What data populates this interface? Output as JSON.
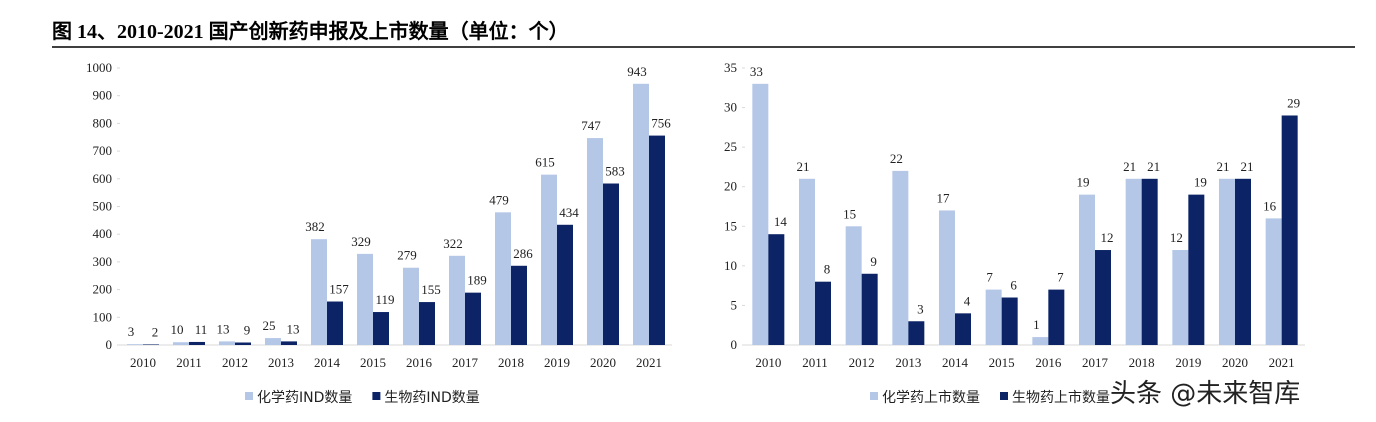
{
  "title": "图 14、2010-2021 国产创新药申报及上市数量（单位：个）",
  "watermark": "头条 @未来智库",
  "chart_data": [
    {
      "type": "bar",
      "categories": [
        "2010",
        "2011",
        "2012",
        "2013",
        "2014",
        "2015",
        "2016",
        "2017",
        "2018",
        "2019",
        "2020",
        "2021"
      ],
      "series": [
        {
          "name": "化学药IND数量",
          "color": "#b4c7e7",
          "values": [
            3,
            10,
            13,
            25,
            382,
            329,
            279,
            322,
            479,
            615,
            747,
            943
          ]
        },
        {
          "name": "生物药IND数量",
          "color": "#0c2466",
          "values": [
            2,
            11,
            9,
            13,
            157,
            119,
            155,
            189,
            286,
            434,
            583,
            756
          ]
        }
      ],
      "ylim": [
        0,
        1000
      ],
      "yticks": [
        0,
        100,
        200,
        300,
        400,
        500,
        600,
        700,
        800,
        900,
        1000
      ],
      "grid": false,
      "legend": "bottom"
    },
    {
      "type": "bar",
      "categories": [
        "2010",
        "2011",
        "2012",
        "2013",
        "2014",
        "2015",
        "2016",
        "2017",
        "2018",
        "2019",
        "2020",
        "2021"
      ],
      "series": [
        {
          "name": "化学药上市数量",
          "color": "#b4c7e7",
          "values": [
            33,
            21,
            15,
            22,
            17,
            7,
            1,
            19,
            21,
            12,
            21,
            16
          ]
        },
        {
          "name": "生物药上市数量",
          "color": "#0c2466",
          "values": [
            14,
            8,
            9,
            3,
            4,
            6,
            7,
            12,
            21,
            19,
            21,
            29
          ]
        }
      ],
      "ylim": [
        0,
        35
      ],
      "yticks": [
        0,
        5,
        10,
        15,
        20,
        25,
        30,
        35
      ],
      "grid": false,
      "legend": "bottom"
    }
  ]
}
